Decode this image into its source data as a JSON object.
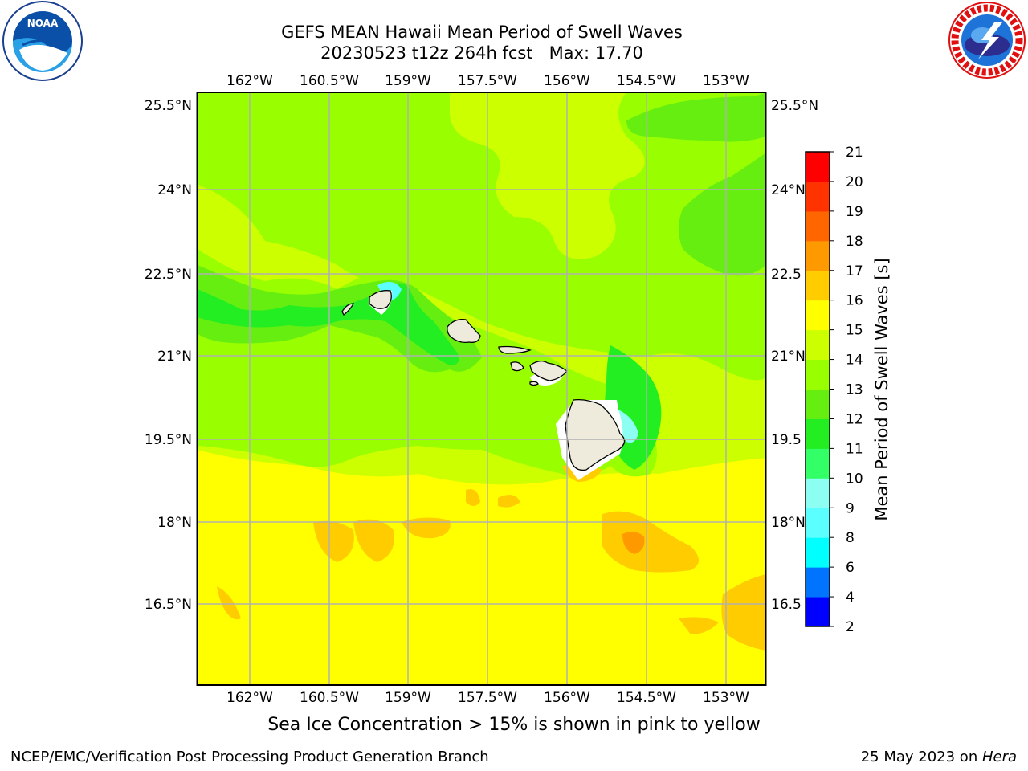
{
  "title": {
    "line1": "GEFS MEAN Hawaii Mean Period of Swell Waves",
    "line2": "20230523 t12z 264h fcst   Max: 17.70"
  },
  "map": {
    "lon_labels": [
      "162°W",
      "160.5°W",
      "159°W",
      "157.5°W",
      "156°W",
      "154.5°W",
      "153°W"
    ],
    "lat_labels_left": [
      "25.5°N",
      "24°N",
      "22.5°N",
      "21°N",
      "19.5°N",
      "18°N",
      "16.5°N"
    ],
    "lat_labels_right": [
      "25.5°N",
      "24°N",
      "22.5",
      "21°N",
      "19.5",
      "18°N",
      "16.5"
    ],
    "grid": true,
    "islands": [
      "Niihau",
      "Kauai",
      "Oahu",
      "Molokai",
      "Lanai",
      "Maui",
      "Kahoolawe",
      "Hawaii"
    ]
  },
  "colorbar": {
    "label": "Mean Period of Swell Waves [s]",
    "ticks": [
      "2",
      "4",
      "6",
      "8",
      "9",
      "10",
      "11",
      "12",
      "13",
      "14",
      "15",
      "16",
      "17",
      "18",
      "19",
      "20",
      "21"
    ],
    "colors": [
      "#0000ff",
      "#0073ff",
      "#00ffff",
      "#5cffff",
      "#8dfff2",
      "#33ff66",
      "#22ee22",
      "#66ee11",
      "#99ff00",
      "#ccff00",
      "#ffff00",
      "#ffcc00",
      "#ff9900",
      "#ff6600",
      "#ff3300",
      "#ff0000"
    ]
  },
  "bottom_note": "Sea Ice Concentration > 15% is shown in pink to yellow",
  "footer": {
    "left": "NCEP/EMC/Verification Post Processing Product Generation Branch",
    "right_prefix": "25 May 2023 on ",
    "right_italic": "Hera"
  }
}
